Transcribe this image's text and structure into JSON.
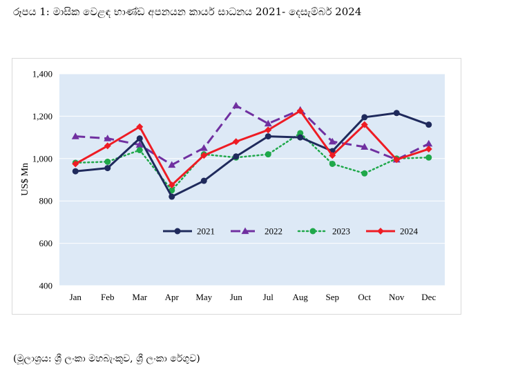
{
  "caption": "රූපය 1: මාසික වෙළඳ භාණ්ඩ අපනයන කාර්ය සාධනය 2021- දෙසැම්බර් 2024",
  "source": "(මූලාශ්‍රය: ශ්‍රී ලංකා මහබැංකුව, ශ්‍රී ලංකා රේගුව)",
  "chart_data": {
    "type": "line",
    "title": "",
    "xlabel": "",
    "ylabel": "US$ Mn",
    "ylim": [
      400,
      1400
    ],
    "yticks": [
      400,
      600,
      800,
      1000,
      1200,
      1400
    ],
    "ytick_labels": [
      "400",
      "600",
      "800",
      "1,000",
      "1,200",
      "1,400"
    ],
    "categories": [
      "Jan",
      "Feb",
      "Mar",
      "Apr",
      "May",
      "Jun",
      "Jul",
      "Aug",
      "Sep",
      "Oct",
      "Nov",
      "Dec"
    ],
    "legend_position": "inside-bottom",
    "series": [
      {
        "name": "2021",
        "color": "#1f2a5c",
        "style": "solid",
        "marker": "circle",
        "values": [
          940,
          955,
          1095,
          820,
          895,
          1010,
          1105,
          1100,
          1035,
          1195,
          1215,
          1160
        ]
      },
      {
        "name": "2022",
        "color": "#7030a0",
        "style": "dash",
        "marker": "triangle",
        "values": [
          1105,
          1095,
          1065,
          970,
          1050,
          1250,
          1165,
          1230,
          1080,
          1055,
          995,
          1070
        ]
      },
      {
        "name": "2023",
        "color": "#1fa84a",
        "style": "dot",
        "marker": "circle",
        "values": [
          980,
          985,
          1040,
          850,
          1020,
          1005,
          1020,
          1120,
          975,
          930,
          1000,
          1005
        ]
      },
      {
        "name": "2024",
        "color": "#ee1c24",
        "style": "solid",
        "marker": "diamond",
        "values": [
          975,
          1060,
          1150,
          875,
          1015,
          1080,
          1135,
          1225,
          1015,
          1160,
          995,
          1045
        ]
      }
    ]
  }
}
